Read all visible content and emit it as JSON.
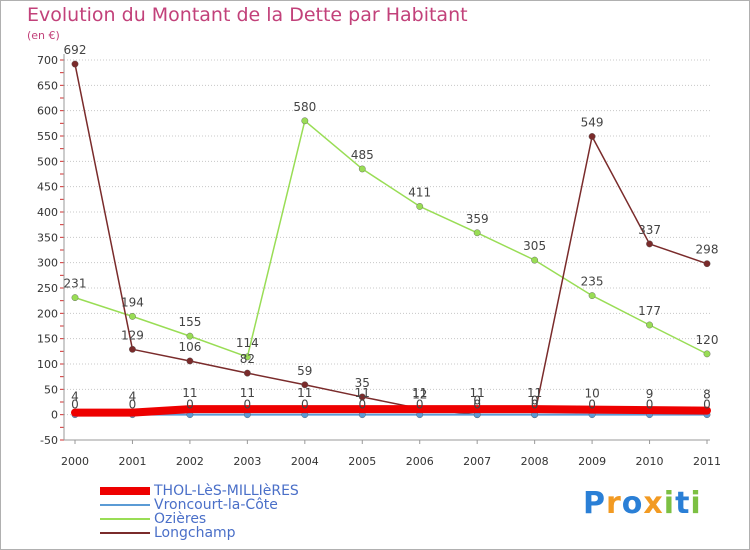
{
  "chart_data": {
    "type": "line",
    "title": "Evolution du Montant de la Dette par Habitant",
    "ylabel": "(en €)",
    "x": [
      "2000",
      "2001",
      "2002",
      "2003",
      "2004",
      "2005",
      "2006",
      "2007",
      "2008",
      "2009",
      "2010",
      "2011"
    ],
    "ylim": [
      -50,
      700
    ],
    "yticks": [
      -50,
      0,
      50,
      100,
      150,
      200,
      250,
      300,
      350,
      400,
      450,
      500,
      550,
      600,
      650,
      700
    ],
    "grid": "horizontal dotted",
    "legend_position": "bottom-left",
    "series": [
      {
        "name": "Ozières",
        "color": "#99dd55",
        "values": [
          231,
          194,
          155,
          114,
          580,
          485,
          411,
          359,
          305,
          235,
          177,
          120
        ]
      },
      {
        "name": "Longchamp",
        "color": "#7a2b2b",
        "values": [
          692,
          129,
          106,
          82,
          59,
          35,
          12,
          0,
          0,
          549,
          337,
          298
        ]
      },
      {
        "name": "Vroncourt-la-Côte",
        "color": "#5b9bd5",
        "values": [
          0,
          0,
          0,
          0,
          0,
          0,
          0,
          0,
          0,
          0,
          0,
          0
        ]
      },
      {
        "name": "THOL-LèS-MILLIèRES",
        "color": "#ee0000",
        "values": [
          4,
          4,
          11,
          11,
          11,
          11,
          11,
          11,
          11,
          10,
          9,
          8
        ]
      }
    ]
  },
  "legend": {
    "items": [
      {
        "label": "THOL-LèS-MILLIèRES",
        "color": "#ee0000",
        "thickness": 8
      },
      {
        "label": "Vroncourt-la-Côte",
        "color": "#5b9bd5",
        "thickness": 2
      },
      {
        "label": "Ozières",
        "color": "#99dd55",
        "thickness": 2
      },
      {
        "label": "Longchamp",
        "color": "#7a2b2b",
        "thickness": 2
      }
    ]
  },
  "logo": {
    "letters": [
      "P",
      "r",
      "o",
      "x",
      "i",
      "t",
      "i"
    ],
    "colors": [
      "#2a7fd6",
      "#f29a22",
      "#2a7fd6",
      "#f29a22",
      "#7cc043",
      "#2a7fd6",
      "#7cc043"
    ]
  }
}
